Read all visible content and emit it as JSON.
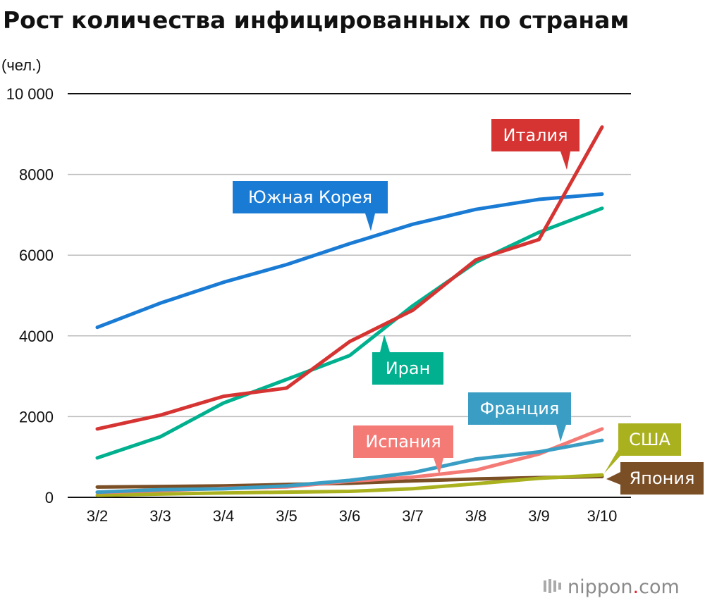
{
  "title": "Рост количества инфицированных по странам",
  "unit_label": "(чел.)",
  "brand": {
    "name": "nippon",
    "dot": ".",
    "tld": "com"
  },
  "chart_data": {
    "type": "line",
    "title": "Рост количества инфицированных по странам",
    "ylabel": "(чел.)",
    "xlabel": "",
    "ylim": [
      0,
      10000
    ],
    "yticks": [
      0,
      2000,
      4000,
      6000,
      8000,
      10000
    ],
    "ytick_labels": [
      "0",
      "2000",
      "4000",
      "6000",
      "8000",
      "10 000"
    ],
    "categories": [
      "3/2",
      "3/3",
      "3/4",
      "3/5",
      "3/6",
      "3/7",
      "3/8",
      "3/9",
      "3/10"
    ],
    "grid": true,
    "series": [
      {
        "name": "Южная Корея",
        "color": "#1a7bd4",
        "values": [
          4212,
          4812,
          5328,
          5766,
          6284,
          6767,
          7134,
          7382,
          7513
        ]
      },
      {
        "name": "Иран",
        "color": "#00b08e",
        "values": [
          978,
          1501,
          2336,
          2922,
          3513,
          4747,
          5823,
          6566,
          7161
        ]
      },
      {
        "name": "Италия",
        "color": "#d53432",
        "values": [
          1694,
          2036,
          2502,
          2706,
          3858,
          4636,
          5883,
          6387,
          9172
        ]
      },
      {
        "name": "Франция",
        "color": "#3a9ec4",
        "values": [
          130,
          191,
          212,
          285,
          420,
          613,
          949,
          1126,
          1412
        ]
      },
      {
        "name": "Испания",
        "color": "#f47a76",
        "values": [
          120,
          165,
          222,
          259,
          400,
          500,
          673,
          1073,
          1695
        ]
      },
      {
        "name": "США",
        "color": "#aab11f",
        "values": [
          53,
          80,
          108,
          129,
          148,
          213,
          336,
          472,
          555
        ]
      },
      {
        "name": "Япония",
        "color": "#7b4f26",
        "values": [
          254,
          268,
          284,
          317,
          349,
          408,
          455,
          488,
          514
        ]
      }
    ]
  }
}
